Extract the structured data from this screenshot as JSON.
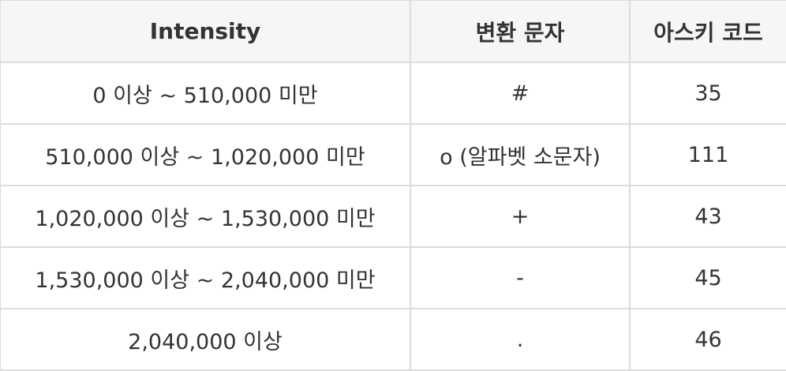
{
  "table": {
    "headers": [
      "Intensity",
      "변환 문자",
      "아스키 코드"
    ],
    "rows": [
      [
        "0 이상 ~ 510,000 미만",
        "#",
        "35"
      ],
      [
        "510,000 이상 ~ 1,020,000 미만",
        "o (알파벳 소문자)",
        "111"
      ],
      [
        "1,020,000 이상 ~ 1,530,000 미만",
        "+",
        "43"
      ],
      [
        "1,530,000 이상 ~ 2,040,000 미만",
        "-",
        "45"
      ],
      [
        "2,040,000 이상",
        ".",
        "46"
      ]
    ]
  }
}
